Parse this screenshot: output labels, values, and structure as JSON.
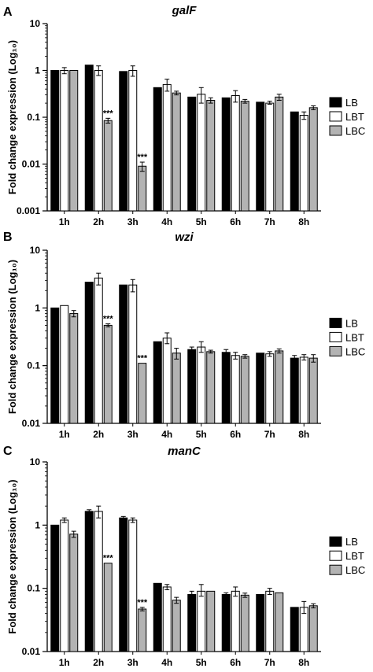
{
  "chart_data": [
    {
      "panel": "A",
      "type": "bar",
      "title": "galF",
      "ylabel": "Fold change expression (Log₁₀)",
      "yscale": "log",
      "ylim": [
        0.001,
        10
      ],
      "yticks": [
        "0.001",
        "0.01",
        "0.1",
        "1",
        "10"
      ],
      "categories": [
        "1h",
        "2h",
        "3h",
        "4h",
        "5h",
        "6h",
        "7h",
        "8h"
      ],
      "legend": "right",
      "series": [
        {
          "name": "LB",
          "values": [
            1.0,
            1.3,
            0.95,
            0.43,
            0.27,
            0.26,
            0.21,
            0.13
          ],
          "errors": [
            null,
            null,
            null,
            null,
            null,
            null,
            null,
            null
          ]
        },
        {
          "name": "LBT",
          "values": [
            1.0,
            1.0,
            1.0,
            0.5,
            0.31,
            0.29,
            0.2,
            0.11
          ],
          "errors": [
            [
              0.85,
              1.15
            ],
            [
              0.78,
              1.25
            ],
            [
              0.75,
              1.25
            ],
            [
              0.36,
              0.65
            ],
            [
              0.2,
              0.43
            ],
            [
              0.21,
              0.37
            ],
            [
              0.19,
              0.22
            ],
            [
              0.09,
              0.13
            ]
          ]
        },
        {
          "name": "LBC",
          "values": [
            1.0,
            0.085,
            0.009,
            0.33,
            0.23,
            0.22,
            0.27,
            0.16
          ],
          "errors": [
            null,
            [
              0.075,
              0.095
            ],
            [
              0.007,
              0.011
            ],
            [
              0.3,
              0.36
            ],
            [
              0.2,
              0.26
            ],
            [
              0.2,
              0.24
            ],
            [
              0.23,
              0.31
            ],
            [
              0.145,
              0.175
            ]
          ]
        }
      ],
      "annotations": [
        {
          "category": "2h",
          "series": "LBC",
          "text": "***"
        },
        {
          "category": "3h",
          "series": "LBC",
          "text": "***"
        }
      ]
    },
    {
      "panel": "B",
      "type": "bar",
      "title": "wzi",
      "ylabel": "Fold change expression (Log₁₀)",
      "yscale": "log",
      "ylim": [
        0.01,
        10
      ],
      "yticks": [
        "0.01",
        "0.1",
        "1",
        "10"
      ],
      "categories": [
        "1h",
        "2h",
        "3h",
        "4h",
        "5h",
        "6h",
        "7h",
        "8h"
      ],
      "legend": "right",
      "series": [
        {
          "name": "LB",
          "values": [
            1.0,
            2.8,
            2.5,
            0.26,
            0.19,
            0.17,
            0.165,
            0.135
          ],
          "errors": [
            null,
            null,
            null,
            null,
            [
              0.17,
              0.21
            ],
            [
              0.15,
              0.19
            ],
            null,
            [
              0.12,
              0.15
            ]
          ]
        },
        {
          "name": "LBT",
          "values": [
            1.1,
            3.3,
            2.5,
            0.3,
            0.21,
            0.15,
            0.16,
            0.14
          ],
          "errors": [
            null,
            [
              2.5,
              4.0
            ],
            [
              1.9,
              3.1
            ],
            [
              0.24,
              0.37
            ],
            [
              0.17,
              0.26
            ],
            [
              0.13,
              0.17
            ],
            [
              0.145,
              0.175
            ],
            [
              0.125,
              0.155
            ]
          ]
        },
        {
          "name": "LBC",
          "values": [
            0.8,
            0.5,
            0.11,
            0.165,
            0.175,
            0.145,
            0.18,
            0.135
          ],
          "errors": [
            [
              0.7,
              0.9
            ],
            [
              0.47,
              0.53
            ],
            null,
            [
              0.13,
              0.2
            ],
            [
              0.165,
              0.185
            ],
            [
              0.135,
              0.155
            ],
            [
              0.165,
              0.195
            ],
            [
              0.115,
              0.155
            ]
          ]
        }
      ],
      "annotations": [
        {
          "category": "2h",
          "series": "LBC",
          "text": "***"
        },
        {
          "category": "3h",
          "series": "LBC",
          "text": "***"
        }
      ]
    },
    {
      "panel": "C",
      "type": "bar",
      "title": "manC",
      "ylabel": "Fold change expression (Log₁₀)",
      "yscale": "log",
      "ylim": [
        0.01,
        10
      ],
      "yticks": [
        "0.01",
        "0.1",
        "1",
        "10"
      ],
      "categories": [
        "1h",
        "2h",
        "3h",
        "4h",
        "5h",
        "6h",
        "7h",
        "8h"
      ],
      "legend": "right",
      "series": [
        {
          "name": "LB",
          "values": [
            1.0,
            1.65,
            1.3,
            0.12,
            0.08,
            0.08,
            0.08,
            0.05
          ],
          "errors": [
            null,
            [
              1.55,
              1.75
            ],
            [
              1.23,
              1.37
            ],
            null,
            [
              0.07,
              0.09
            ],
            [
              0.075,
              0.085
            ],
            null,
            null
          ]
        },
        {
          "name": "LBT",
          "values": [
            1.2,
            1.65,
            1.2,
            0.105,
            0.09,
            0.09,
            0.09,
            0.05
          ],
          "errors": [
            [
              1.1,
              1.3
            ],
            [
              1.3,
              2.0
            ],
            [
              1.1,
              1.3
            ],
            [
              0.095,
              0.115
            ],
            [
              0.075,
              0.115
            ],
            [
              0.075,
              0.105
            ],
            [
              0.08,
              0.1
            ],
            [
              0.04,
              0.062
            ]
          ]
        },
        {
          "name": "LBC",
          "values": [
            0.72,
            0.25,
            0.047,
            0.065,
            0.09,
            0.078,
            0.085,
            0.053
          ],
          "errors": [
            [
              0.64,
              0.8
            ],
            null,
            [
              0.044,
              0.05
            ],
            [
              0.058,
              0.072
            ],
            null,
            [
              0.072,
              0.084
            ],
            null,
            [
              0.049,
              0.057
            ]
          ]
        }
      ],
      "annotations": [
        {
          "category": "2h",
          "series": "LBC",
          "text": "***"
        },
        {
          "category": "3h",
          "series": "LBC",
          "text": "***"
        }
      ]
    }
  ],
  "colors": {
    "LB": "#000000",
    "LBT": "#ffffff",
    "LBC": "#b3b3b3"
  }
}
